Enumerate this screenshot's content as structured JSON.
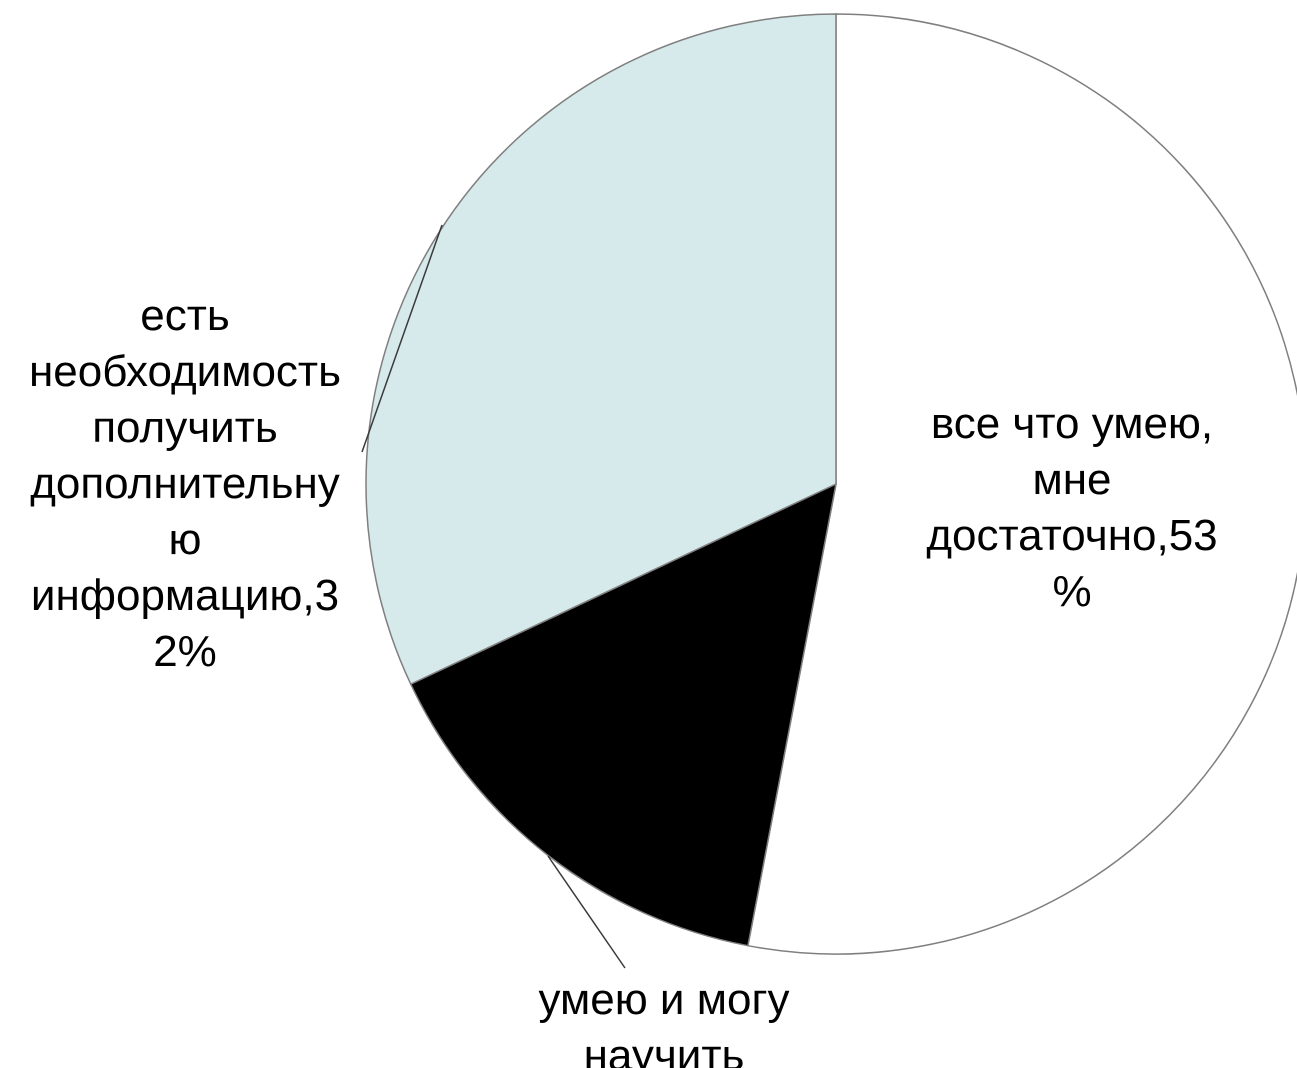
{
  "chart_data": {
    "type": "pie",
    "slices": [
      {
        "label_lines": [
          "все что умею,",
          "мне",
          "достаточно,53",
          "%"
        ],
        "value": 53,
        "color": "#ffffff"
      },
      {
        "label_lines": [
          "умею и могу",
          "научить"
        ],
        "value": 15,
        "color": "#000000"
      },
      {
        "label_lines": [
          "есть",
          "необходимость",
          "получить",
          "дополнительну",
          "ю",
          "информацию,3",
          "2%"
        ],
        "value": 32,
        "color": "#d6e9eb"
      }
    ],
    "start_angle_deg": 0,
    "direction": "clockwise"
  }
}
